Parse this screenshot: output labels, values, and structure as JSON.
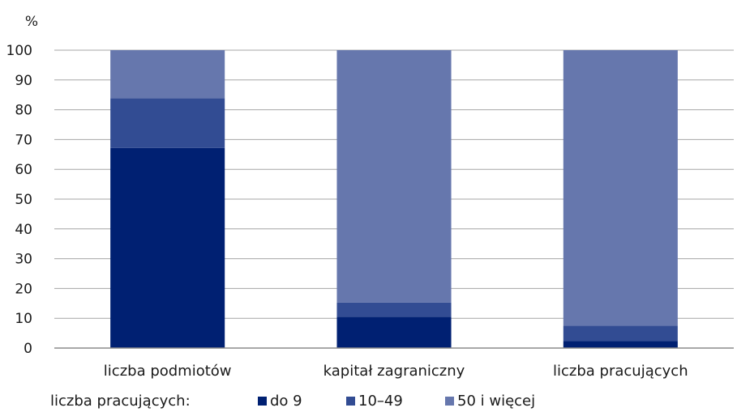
{
  "chart_data": {
    "type": "bar",
    "stacked": true,
    "y_unit_label": "%",
    "ylim": [
      0,
      100
    ],
    "y_ticks": [
      0,
      10,
      20,
      30,
      40,
      50,
      60,
      70,
      80,
      90,
      100
    ],
    "grid": true,
    "categories": [
      "liczba podmiotów",
      "kapitał zagraniczny",
      "liczba pracujących"
    ],
    "legend_title": "liczba pracujących:",
    "legend_position": "bottom",
    "series": [
      {
        "name": "do 9",
        "color": "#002072",
        "values": [
          67.2,
          10.5,
          2.3
        ]
      },
      {
        "name": "10–49",
        "color": "#324c93",
        "values": [
          16.7,
          4.8,
          5.2
        ]
      },
      {
        "name": "50 i więcej",
        "color": "#6677ad",
        "values": [
          16.1,
          84.7,
          92.5
        ]
      }
    ]
  }
}
